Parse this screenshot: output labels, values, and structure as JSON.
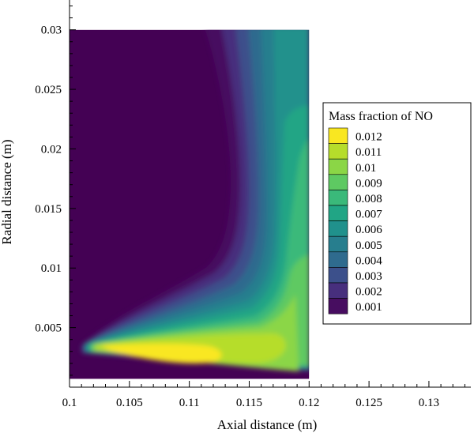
{
  "chart_data": {
    "type": "heatmap",
    "title": "",
    "xlabel": "Axial distance (m)",
    "ylabel": "Radial distance (m)",
    "xlim": [
      0.1,
      0.1335
    ],
    "ylim": [
      0.0,
      0.0325
    ],
    "x_ticks": [
      "0.1",
      "0.105",
      "0.11",
      "0.115",
      "0.12",
      "0.125",
      "0.13"
    ],
    "y_ticks": [
      "0.005",
      "0.01",
      "0.015",
      "0.02",
      "0.025",
      "0.03"
    ],
    "x_tick_values": [
      0.1,
      0.105,
      0.11,
      0.115,
      0.12,
      0.125,
      0.13
    ],
    "y_tick_values": [
      0.005,
      0.01,
      0.015,
      0.02,
      0.025,
      0.03
    ],
    "domain": {
      "x": [
        0.1,
        0.12
      ],
      "y": [
        0.0007,
        0.03
      ]
    },
    "legend": {
      "title": "Mass fraction of NO",
      "placement": "right",
      "levels": [
        0.012,
        0.011,
        0.01,
        0.009,
        0.008,
        0.007,
        0.006,
        0.005,
        0.004,
        0.003,
        0.002,
        0.001
      ],
      "labels": [
        "0.012",
        "0.011",
        "0.01",
        "0.009",
        "0.008",
        "0.007",
        "0.006",
        "0.005",
        "0.004",
        "0.003",
        "0.002",
        "0.001"
      ],
      "colors": [
        "#f9e721",
        "#b6dd2b",
        "#8bd646",
        "#5ec962",
        "#3ab97a",
        "#21a585",
        "#20918c",
        "#277e8e",
        "#2f6b8e",
        "#3c508b",
        "#472f7d",
        "#470d60",
        "#440154"
      ]
    }
  }
}
